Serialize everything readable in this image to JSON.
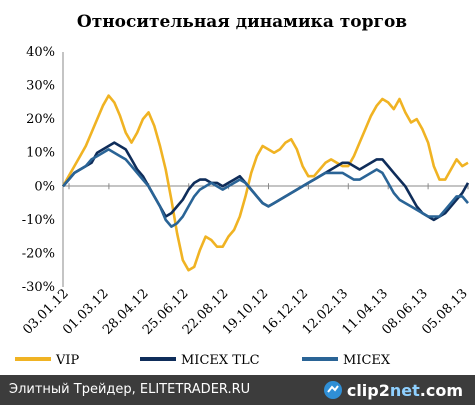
{
  "chart_data": {
    "type": "line",
    "title": "Относительная динамика торгов",
    "y_ticks": [
      "40%",
      "30%",
      "20%",
      "10%",
      "0%",
      "-10%",
      "-20%",
      "-30%"
    ],
    "y_tick_values": [
      40,
      30,
      20,
      10,
      0,
      -10,
      -20,
      -30
    ],
    "ylim": [
      -30,
      40
    ],
    "x_tick_labels": [
      "03.01.12",
      "01.03.12",
      "28.04.12",
      "25.06.12",
      "22.08.12",
      "19.10.12",
      "16.12.12",
      "12.02.13",
      "11.04.13",
      "08.06.13",
      "05.08.13"
    ],
    "legend_position": "bottom",
    "grid": false,
    "series": [
      {
        "name": "VIP",
        "color": "#f0b323",
        "values": [
          0,
          3,
          6,
          9,
          12,
          16,
          20,
          24,
          27,
          25,
          21,
          16,
          13,
          16,
          20,
          22,
          18,
          12,
          5,
          -4,
          -14,
          -22,
          -25,
          -24,
          -19,
          -15,
          -16,
          -18,
          -18,
          -15,
          -13,
          -9,
          -3,
          4,
          9,
          12,
          11,
          10,
          11,
          13,
          14,
          11,
          6,
          3,
          3,
          5,
          7,
          8,
          7,
          6,
          6,
          9,
          13,
          17,
          21,
          24,
          26,
          25,
          23,
          26,
          22,
          19,
          20,
          17,
          13,
          6,
          2,
          2,
          5,
          8,
          6,
          7
        ]
      },
      {
        "name": "MICEX TLC",
        "color": "#0f2d5a",
        "values": [
          0,
          2,
          4,
          5,
          6,
          7,
          10,
          11,
          12,
          13,
          12,
          11,
          8,
          5,
          3,
          0,
          -3,
          -6,
          -9,
          -8,
          -6,
          -4,
          -1,
          1,
          2,
          2,
          1,
          1,
          0,
          1,
          2,
          3,
          1,
          -1,
          -3,
          -5,
          -6,
          -5,
          -4,
          -3,
          -2,
          -1,
          0,
          1,
          2,
          3,
          4,
          5,
          6,
          7,
          7,
          6,
          5,
          6,
          7,
          8,
          8,
          6,
          4,
          2,
          0,
          -3,
          -6,
          -8,
          -9,
          -10,
          -9,
          -8,
          -6,
          -4,
          -2,
          1
        ]
      },
      {
        "name": "MICEX",
        "color": "#2a6496",
        "values": [
          0,
          2,
          4,
          5,
          6,
          8,
          9,
          10,
          11,
          10,
          9,
          8,
          6,
          4,
          2,
          0,
          -3,
          -6,
          -10,
          -12,
          -11,
          -9,
          -6,
          -3,
          -1,
          0,
          1,
          0,
          -1,
          0,
          1,
          2,
          1,
          -1,
          -3,
          -5,
          -6,
          -5,
          -4,
          -3,
          -2,
          -1,
          0,
          1,
          2,
          3,
          4,
          4,
          4,
          4,
          3,
          2,
          2,
          3,
          4,
          5,
          4,
          1,
          -2,
          -4,
          -5,
          -6,
          -7,
          -8,
          -9,
          -9,
          -9,
          -7,
          -5,
          -3,
          -3,
          -5
        ]
      }
    ]
  },
  "footer": {
    "caption": "Элитный Трейдер, ELITETRADER.RU",
    "logo_main": "clip2",
    "logo_accent": "net",
    "logo_suffix": ".com"
  }
}
